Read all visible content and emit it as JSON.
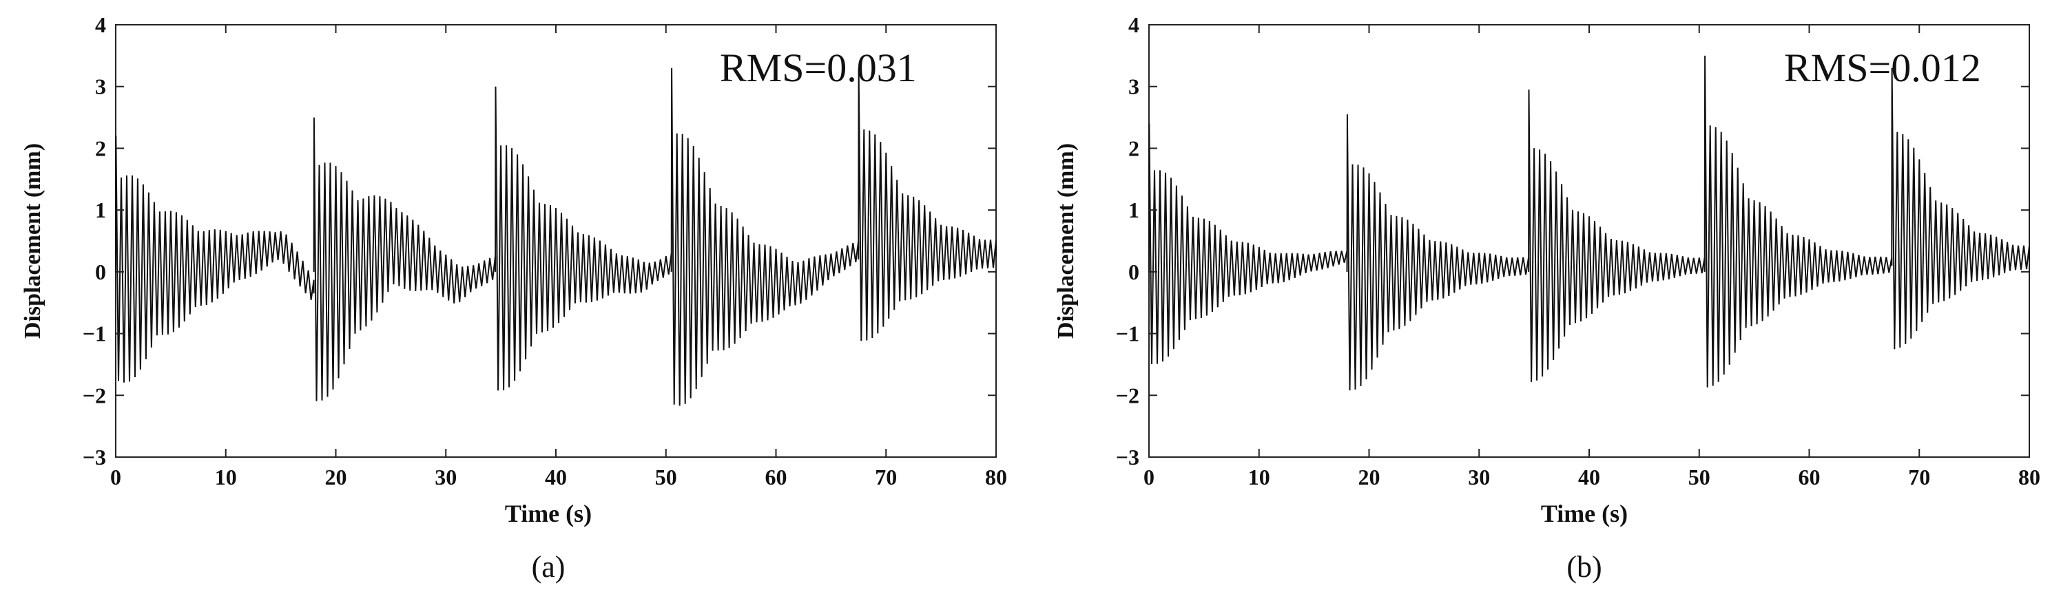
{
  "chart_data": [
    {
      "type": "line",
      "panel_label": "(a)",
      "annotation": "RMS=0.031",
      "xlabel": "Time (s)",
      "ylabel": "Displacement (mm)",
      "xlim": [
        0,
        80
      ],
      "ylim": [
        -3,
        4
      ],
      "xticks": [
        0,
        10,
        20,
        30,
        40,
        50,
        60,
        70,
        80
      ],
      "yticks": [
        -3,
        -2,
        -1,
        0,
        1,
        2,
        3,
        4
      ],
      "grid": false,
      "color": "#111111",
      "oscillation_period_s": 0.5,
      "segments": [
        {
          "t_start": 0,
          "t_end": 18,
          "peak_pos": 2.2,
          "peak_neg": -2.0,
          "end_amp": 0.15,
          "drift": [
            [
              0,
              0
            ],
            [
              8,
              0.1
            ],
            [
              13,
              0.35
            ],
            [
              15,
              0.45
            ],
            [
              18,
              -0.35
            ]
          ]
        },
        {
          "t_start": 18,
          "t_end": 34.5,
          "peak_pos": 2.5,
          "peak_neg": -2.4,
          "end_amp": 0.15,
          "drift": [
            [
              18,
              0
            ],
            [
              22,
              0.2
            ],
            [
              25,
              0.5
            ],
            [
              28,
              0.2
            ],
            [
              31,
              -0.2
            ],
            [
              34.5,
              0.1
            ]
          ]
        },
        {
          "t_start": 34.5,
          "t_end": 50.5,
          "peak_pos": 3.0,
          "peak_neg": -2.2,
          "end_amp": 0.15,
          "drift": [
            [
              34.5,
              0
            ],
            [
              42,
              0.05
            ],
            [
              48,
              -0.1
            ],
            [
              50.5,
              0.15
            ]
          ]
        },
        {
          "t_start": 50.5,
          "t_end": 67.5,
          "peak_pos": 3.3,
          "peak_neg": -2.45,
          "end_amp": 0.15,
          "drift": [
            [
              50.5,
              0
            ],
            [
              57,
              -0.2
            ],
            [
              62,
              -0.2
            ],
            [
              65,
              0.1
            ],
            [
              67.5,
              0.35
            ]
          ]
        },
        {
          "t_start": 67.5,
          "t_end": 80,
          "peak_pos": 3.1,
          "peak_neg": -1.5,
          "end_amp": 0.25,
          "drift": [
            [
              67.5,
              0.2
            ],
            [
              74,
              0.2
            ],
            [
              80,
              0.25
            ]
          ]
        }
      ]
    },
    {
      "type": "line",
      "panel_label": "(b)",
      "annotation": "RMS=0.012",
      "xlabel": "Time (s)",
      "ylabel": "Displacement (mm)",
      "xlim": [
        0,
        80
      ],
      "ylim": [
        -3,
        4
      ],
      "xticks": [
        0,
        10,
        20,
        30,
        40,
        50,
        60,
        70,
        80
      ],
      "yticks": [
        -3,
        -2,
        -1,
        0,
        1,
        2,
        3,
        4
      ],
      "grid": false,
      "color": "#111111",
      "oscillation_period_s": 0.5,
      "segments": [
        {
          "t_start": 0,
          "t_end": 18,
          "peak_pos": 2.4,
          "peak_neg": -1.7,
          "end_amp": 0.08,
          "drift": [
            [
              0,
              0
            ],
            [
              12,
              0.05
            ],
            [
              18,
              0.25
            ]
          ]
        },
        {
          "t_start": 18,
          "t_end": 34.5,
          "peak_pos": 2.55,
          "peak_neg": -2.2,
          "end_amp": 0.1,
          "drift": [
            [
              18,
              0
            ],
            [
              28,
              0.05
            ],
            [
              34.5,
              0.1
            ]
          ]
        },
        {
          "t_start": 34.5,
          "t_end": 50.5,
          "peak_pos": 2.95,
          "peak_neg": -2.05,
          "end_amp": 0.1,
          "drift": [
            [
              34.5,
              0
            ],
            [
              44,
              0.05
            ],
            [
              50.5,
              0.1
            ]
          ]
        },
        {
          "t_start": 50.5,
          "t_end": 67.5,
          "peak_pos": 3.5,
          "peak_neg": -2.15,
          "end_amp": 0.1,
          "drift": [
            [
              50.5,
              0
            ],
            [
              60,
              0.05
            ],
            [
              67.5,
              0.1
            ]
          ]
        },
        {
          "t_start": 67.5,
          "t_end": 80,
          "peak_pos": 3.2,
          "peak_neg": -1.55,
          "end_amp": 0.2,
          "drift": [
            [
              67.5,
              0.1
            ],
            [
              74,
              0.15
            ],
            [
              80,
              0.2
            ]
          ]
        }
      ]
    }
  ]
}
